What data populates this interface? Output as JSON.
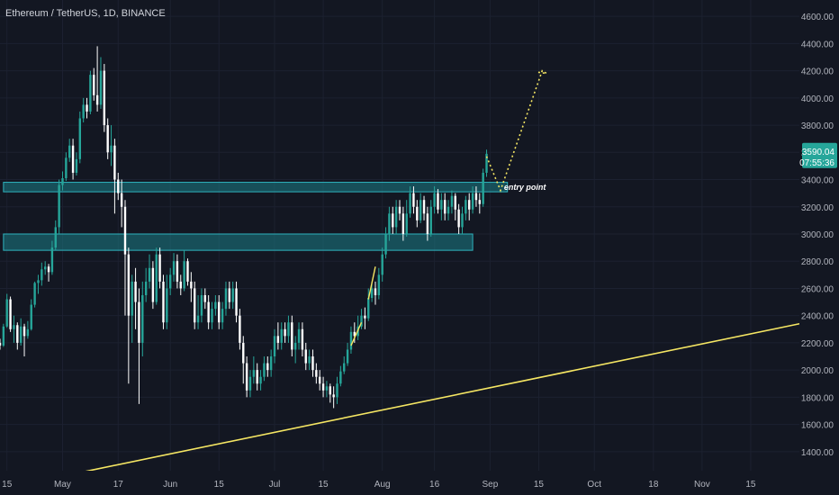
{
  "header": {
    "symbol_title": "Ethereum / TetherUS, 1D, BINANCE"
  },
  "colors": {
    "background": "#131722",
    "axis_background": "#131722",
    "axis_text": "#b2b5be",
    "bull": "#26a69a",
    "bear": "#ffffff",
    "zone_fill": "#1b7d86",
    "zone_stroke": "#2fb3be",
    "trendline": "#f5e663",
    "price_badge": "#26a69a",
    "gridline": "#1c2130"
  },
  "chart_data": {
    "type": "candlestick",
    "symbol": "ETHUSDT",
    "interval": "1D",
    "exchange": "BINANCE",
    "current_price": "3590.04",
    "countdown": "07:55:36",
    "y_ticks": [
      "1400.00",
      "1600.00",
      "1800.00",
      "2000.00",
      "2200.00",
      "2400.00",
      "2600.00",
      "2800.00",
      "3000.00",
      "3200.00",
      "3400.00",
      "3600.00",
      "3800.00",
      "4000.00",
      "4200.00",
      "4400.00",
      "4600.00"
    ],
    "ylim": [
      1260,
      4720
    ],
    "x_ticks": [
      {
        "label": "15",
        "day": -16
      },
      {
        "label": "May",
        "day": 0
      },
      {
        "label": "17",
        "day": 16
      },
      {
        "label": "Jun",
        "day": 31
      },
      {
        "label": "15",
        "day": 45
      },
      {
        "label": "Jul",
        "day": 61
      },
      {
        "label": "15",
        "day": 75
      },
      {
        "label": "Aug",
        "day": 92
      },
      {
        "label": "16",
        "day": 107
      },
      {
        "label": "Sep",
        "day": 123
      },
      {
        "label": "15",
        "day": 137
      },
      {
        "label": "Oct",
        "day": 153
      },
      {
        "label": "18",
        "day": 170
      },
      {
        "label": "Nov",
        "day": 184
      },
      {
        "label": "15",
        "day": 198
      }
    ],
    "xlim_days": [
      -18,
      212
    ],
    "candles": [
      [
        -18,
        2200,
        2180,
        2230,
        2150
      ],
      [
        -17,
        2180,
        2320,
        2340,
        2170
      ],
      [
        -16,
        2320,
        2520,
        2560,
        2310
      ],
      [
        -15,
        2520,
        2300,
        2540,
        2280
      ],
      [
        -14,
        2300,
        2330,
        2400,
        2200
      ],
      [
        -13,
        2330,
        2200,
        2350,
        2150
      ],
      [
        -12,
        2200,
        2320,
        2380,
        2180
      ],
      [
        -11,
        2320,
        2250,
        2340,
        2100
      ],
      [
        -10,
        2250,
        2300,
        2360,
        2230
      ],
      [
        -9,
        2300,
        2480,
        2520,
        2290
      ],
      [
        -8,
        2480,
        2640,
        2650,
        2460
      ],
      [
        -7,
        2640,
        2660,
        2700,
        2560
      ],
      [
        -6,
        2660,
        2740,
        2790,
        2620
      ],
      [
        -5,
        2740,
        2760,
        2800,
        2700
      ],
      [
        -4,
        2760,
        2720,
        2780,
        2650
      ],
      [
        -3,
        2720,
        2900,
        2950,
        2700
      ],
      [
        -2,
        2900,
        3050,
        3100,
        2880
      ],
      [
        -1,
        3050,
        3360,
        3400,
        3000
      ],
      [
        0,
        3360,
        3410,
        3460,
        3320
      ],
      [
        1,
        3410,
        3560,
        3600,
        3390
      ],
      [
        2,
        3560,
        3650,
        3700,
        3530
      ],
      [
        3,
        3650,
        3450,
        3700,
        3400
      ],
      [
        4,
        3450,
        3550,
        3600,
        3430
      ],
      [
        5,
        3550,
        3850,
        3900,
        3520
      ],
      [
        6,
        3850,
        3950,
        4000,
        3820
      ],
      [
        7,
        3950,
        3900,
        4000,
        3850
      ],
      [
        8,
        3900,
        4170,
        4200,
        3880
      ],
      [
        9,
        4170,
        4020,
        4220,
        3980
      ],
      [
        10,
        4020,
        3950,
        4380,
        3900
      ],
      [
        11,
        3950,
        4200,
        4300,
        3920
      ],
      [
        12,
        4200,
        3800,
        4250,
        3750
      ],
      [
        13,
        3800,
        3600,
        3850,
        3550
      ],
      [
        14,
        3600,
        3650,
        3800,
        3500
      ],
      [
        15,
        3650,
        3400,
        3700,
        3150
      ],
      [
        16,
        3400,
        3300,
        3450,
        3250
      ],
      [
        17,
        3300,
        3200,
        3400,
        3050
      ],
      [
        18,
        3200,
        2850,
        3250,
        2400
      ],
      [
        19,
        2850,
        2400,
        2900,
        1900
      ],
      [
        20,
        2400,
        2650,
        2700,
        2200
      ],
      [
        21,
        2650,
        2500,
        2750,
        2300
      ],
      [
        22,
        2500,
        2200,
        2600,
        1750
      ],
      [
        23,
        2200,
        2550,
        2650,
        2100
      ],
      [
        24,
        2550,
        2650,
        2750,
        2500
      ],
      [
        25,
        2650,
        2750,
        2850,
        2600
      ],
      [
        26,
        2750,
        2500,
        2800,
        2450
      ],
      [
        27,
        2500,
        2850,
        2900,
        2480
      ],
      [
        28,
        2850,
        2650,
        2900,
        2600
      ],
      [
        29,
        2650,
        2350,
        2700,
        2300
      ],
      [
        30,
        2350,
        2600,
        2700,
        2300
      ],
      [
        31,
        2600,
        2700,
        2750,
        2550
      ],
      [
        32,
        2700,
        2800,
        2860,
        2650
      ],
      [
        33,
        2800,
        2650,
        2850,
        2600
      ],
      [
        34,
        2650,
        2600,
        2700,
        2550
      ],
      [
        35,
        2600,
        2800,
        2880,
        2580
      ],
      [
        36,
        2800,
        2650,
        2820,
        2620
      ],
      [
        37,
        2650,
        2600,
        2720,
        2500
      ],
      [
        38,
        2600,
        2350,
        2650,
        2300
      ],
      [
        39,
        2350,
        2400,
        2550,
        2300
      ],
      [
        40,
        2400,
        2550,
        2600,
        2350
      ],
      [
        41,
        2550,
        2500,
        2600,
        2450
      ],
      [
        42,
        2500,
        2350,
        2550,
        2300
      ],
      [
        43,
        2350,
        2450,
        2500,
        2300
      ],
      [
        44,
        2450,
        2500,
        2550,
        2400
      ],
      [
        45,
        2500,
        2350,
        2550,
        2300
      ],
      [
        46,
        2350,
        2450,
        2500,
        2300
      ],
      [
        47,
        2450,
        2600,
        2650,
        2400
      ],
      [
        48,
        2600,
        2500,
        2650,
        2450
      ],
      [
        49,
        2500,
        2600,
        2650,
        2450
      ],
      [
        50,
        2600,
        2400,
        2650,
        2350
      ],
      [
        51,
        2400,
        2200,
        2450,
        2150
      ],
      [
        52,
        2200,
        2050,
        2250,
        1900
      ],
      [
        53,
        2050,
        1850,
        2100,
        1800
      ],
      [
        54,
        1850,
        1950,
        2000,
        1800
      ],
      [
        55,
        1950,
        2000,
        2100,
        1900
      ],
      [
        56,
        2000,
        1900,
        2050,
        1850
      ],
      [
        57,
        1900,
        1950,
        2000,
        1850
      ],
      [
        58,
        1950,
        2050,
        2100,
        1920
      ],
      [
        59,
        2050,
        2000,
        2100,
        1950
      ],
      [
        60,
        2000,
        2100,
        2150,
        1950
      ],
      [
        61,
        2100,
        2250,
        2300,
        2050
      ],
      [
        62,
        2250,
        2200,
        2350,
        2150
      ],
      [
        63,
        2200,
        2300,
        2350,
        2150
      ],
      [
        64,
        2300,
        2250,
        2350,
        2200
      ],
      [
        65,
        2250,
        2350,
        2400,
        2200
      ],
      [
        66,
        2350,
        2150,
        2400,
        2100
      ],
      [
        67,
        2150,
        2200,
        2250,
        2050
      ],
      [
        68,
        2200,
        2300,
        2350,
        2150
      ],
      [
        69,
        2300,
        2150,
        2350,
        2100
      ],
      [
        70,
        2150,
        2050,
        2200,
        2000
      ],
      [
        71,
        2050,
        2100,
        2150,
        2000
      ],
      [
        72,
        2100,
        2000,
        2150,
        1950
      ],
      [
        73,
        2000,
        1950,
        2050,
        1900
      ],
      [
        74,
        1950,
        1900,
        2000,
        1850
      ],
      [
        75,
        1900,
        1850,
        1950,
        1800
      ],
      [
        76,
        1850,
        1880,
        1920,
        1800
      ],
      [
        77,
        1880,
        1820,
        1900,
        1760
      ],
      [
        78,
        1820,
        1800,
        1880,
        1720
      ],
      [
        79,
        1800,
        1900,
        1950,
        1750
      ],
      [
        80,
        1900,
        1990,
        2030,
        1880
      ],
      [
        81,
        1990,
        2050,
        2100,
        1970
      ],
      [
        82,
        2050,
        2150,
        2200,
        2030
      ],
      [
        83,
        2150,
        2280,
        2320,
        2120
      ],
      [
        84,
        2280,
        2250,
        2350,
        2200
      ],
      [
        85,
        2250,
        2320,
        2400,
        2220
      ],
      [
        86,
        2320,
        2400,
        2450,
        2300
      ],
      [
        87,
        2400,
        2380,
        2460,
        2300
      ],
      [
        88,
        2380,
        2530,
        2600,
        2360
      ],
      [
        89,
        2530,
        2600,
        2650,
        2500
      ],
      [
        90,
        2600,
        2550,
        2650,
        2480
      ],
      [
        91,
        2550,
        2700,
        2750,
        2520
      ],
      [
        92,
        2700,
        2850,
        2900,
        2650
      ],
      [
        93,
        2850,
        3000,
        3050,
        2820
      ],
      [
        94,
        3000,
        3150,
        3200,
        2950
      ],
      [
        95,
        3150,
        3050,
        3200,
        3000
      ],
      [
        96,
        3050,
        3200,
        3250,
        3000
      ],
      [
        97,
        3200,
        3150,
        3250,
        3100
      ],
      [
        98,
        3150,
        3000,
        3200,
        2950
      ],
      [
        99,
        3000,
        3150,
        3250,
        2980
      ],
      [
        100,
        3150,
        3300,
        3350,
        3120
      ],
      [
        101,
        3300,
        3200,
        3350,
        3150
      ],
      [
        102,
        3200,
        3100,
        3250,
        3050
      ],
      [
        103,
        3100,
        3250,
        3300,
        3080
      ],
      [
        104,
        3250,
        3150,
        3280,
        3100
      ],
      [
        105,
        3150,
        3000,
        3200,
        2950
      ],
      [
        106,
        3000,
        3200,
        3250,
        2980
      ],
      [
        107,
        3200,
        3300,
        3350,
        3150
      ],
      [
        108,
        3300,
        3180,
        3330,
        3150
      ],
      [
        109,
        3180,
        3250,
        3300,
        3100
      ],
      [
        110,
        3250,
        3150,
        3300,
        3100
      ],
      [
        111,
        3150,
        3200,
        3250,
        3100
      ],
      [
        112,
        3200,
        3280,
        3320,
        3150
      ],
      [
        113,
        3280,
        3180,
        3300,
        3100
      ],
      [
        114,
        3180,
        3050,
        3220,
        3000
      ],
      [
        115,
        3050,
        3150,
        3200,
        3000
      ],
      [
        116,
        3150,
        3250,
        3280,
        3100
      ],
      [
        117,
        3250,
        3180,
        3300,
        3100
      ],
      [
        118,
        3180,
        3300,
        3350,
        3150
      ],
      [
        119,
        3300,
        3250,
        3350,
        3200
      ],
      [
        120,
        3250,
        3220,
        3300,
        3150
      ],
      [
        121,
        3220,
        3450,
        3480,
        3200
      ],
      [
        122,
        3450,
        3590,
        3620,
        3420
      ]
    ],
    "annotations": {
      "zones": [
        {
          "day_start": -17,
          "day_end": 128,
          "price_low": 3310,
          "price_high": 3380
        },
        {
          "day_start": -17,
          "day_end": 118,
          "price_low": 2880,
          "price_high": 3000
        }
      ],
      "trendline": {
        "from": [
          0,
          1220
        ],
        "to": [
          212,
          2340
        ]
      },
      "projection": {
        "points": [
          [
            122,
            3570
          ],
          [
            126,
            3320
          ],
          [
            138,
            4200
          ],
          [
            139.3,
            4180
          ],
          [
            136.5,
            4190
          ]
        ]
      },
      "small_lines": [
        {
          "from": [
            83,
            2180
          ],
          "to": [
            86,
            2350
          ]
        },
        {
          "from": [
            88,
            2520
          ],
          "to": [
            90,
            2760
          ]
        }
      ],
      "entry_point": {
        "text": "entry point",
        "day": 127,
        "price": 3325
      }
    }
  }
}
